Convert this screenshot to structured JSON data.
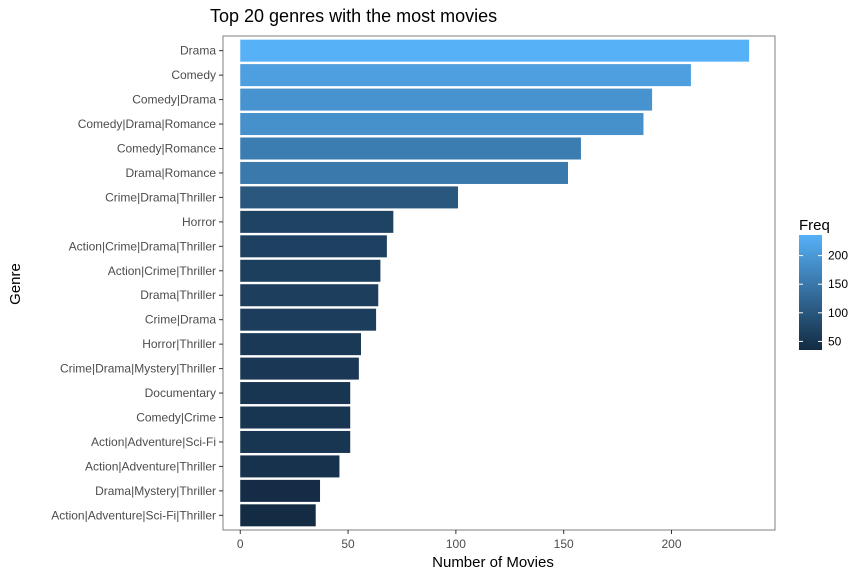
{
  "chart_data": {
    "type": "bar",
    "orientation": "horizontal",
    "title": "Top 20 genres with the most movies",
    "xlabel": "Number of Movies",
    "ylabel": "Genre",
    "xlim": [
      -8,
      248
    ],
    "x_ticks": [
      0,
      50,
      100,
      150,
      200
    ],
    "grid": false,
    "categories": [
      "Drama",
      "Comedy",
      "Comedy|Drama",
      "Comedy|Drama|Romance",
      "Comedy|Romance",
      "Drama|Romance",
      "Crime|Drama|Thriller",
      "Horror",
      "Action|Crime|Drama|Thriller",
      "Action|Crime|Thriller",
      "Drama|Thriller",
      "Crime|Drama",
      "Horror|Thriller",
      "Crime|Drama|Mystery|Thriller",
      "Documentary",
      "Comedy|Crime",
      "Action|Adventure|Sci-Fi",
      "Action|Adventure|Thriller",
      "Drama|Mystery|Thriller",
      "Action|Adventure|Sci-Fi|Thriller"
    ],
    "values": [
      236,
      209,
      191,
      187,
      158,
      152,
      101,
      71,
      68,
      65,
      64,
      63,
      56,
      55,
      51,
      51,
      51,
      46,
      37,
      35
    ],
    "legend": {
      "title": "Freq",
      "placement": "right",
      "ticks": [
        50,
        100,
        150,
        200
      ],
      "range": [
        35,
        236
      ],
      "color_low": "#132B43",
      "color_high": "#56B1F7"
    }
  }
}
